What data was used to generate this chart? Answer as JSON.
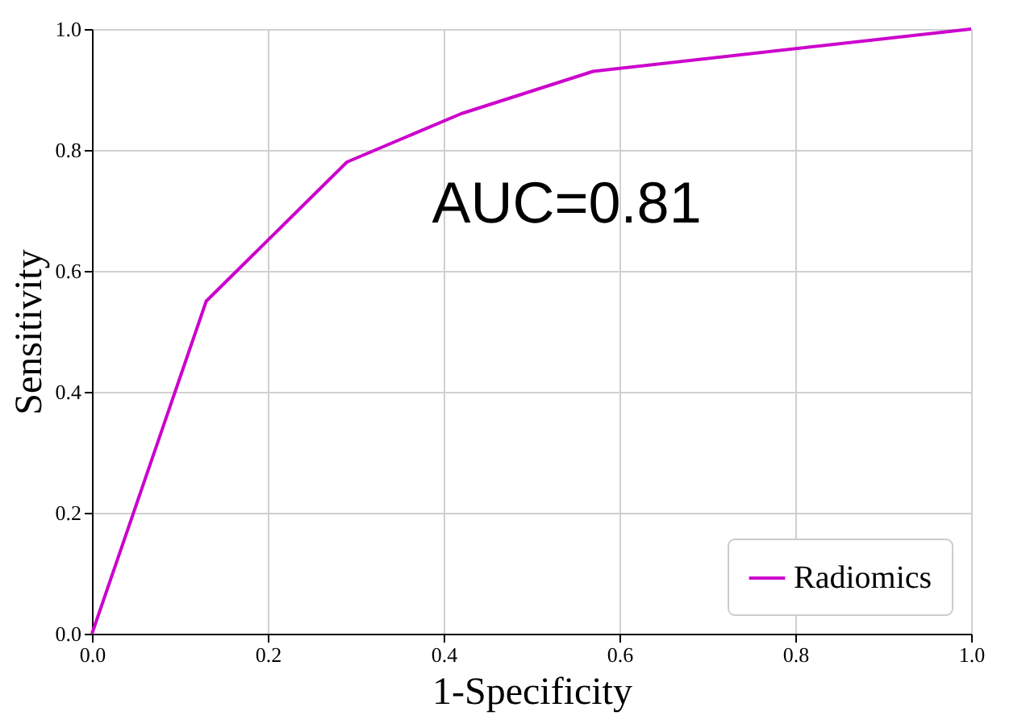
{
  "chart_data": {
    "type": "line",
    "xlabel": "1-Specificity",
    "ylabel": "Sensitivity",
    "x": [
      0,
      0.13,
      0.29,
      0.42,
      0.57,
      1.0
    ],
    "series": [
      {
        "name": "Radiomics",
        "color": "#cc00cc",
        "values": [
          0,
          0.55,
          0.78,
          0.86,
          0.93,
          1.0
        ]
      }
    ],
    "xlim": [
      0,
      1
    ],
    "ylim": [
      0,
      1
    ],
    "xticks": [
      {
        "value": 0,
        "label": "0.0"
      },
      0.2,
      0.4,
      0.6,
      0.8,
      {
        "value": 1,
        "label": "1.0"
      }
    ],
    "yticks": [
      {
        "value": 0,
        "label": "0.0"
      },
      0.2,
      0.4,
      0.6,
      0.8,
      {
        "value": 1,
        "label": "1.0"
      }
    ],
    "annotations": [
      "AUC=0.81"
    ],
    "grid": true,
    "legend": "bottom right",
    "marker": "none",
    "line_style": "solid"
  }
}
